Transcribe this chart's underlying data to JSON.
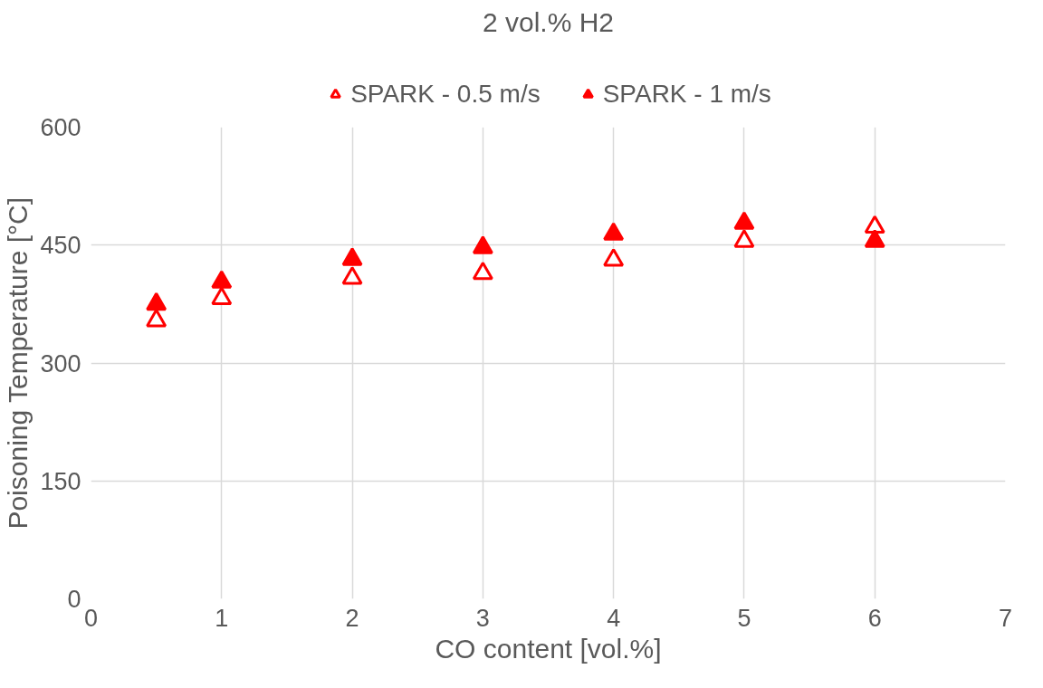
{
  "chart_data": {
    "type": "scatter",
    "title": "2 vol.% H2",
    "xlabel": "CO content [vol.%]",
    "ylabel": "Poisoning Temperature [°C]",
    "x": [
      0.5,
      1,
      2,
      3,
      4,
      5,
      6
    ],
    "series": [
      {
        "name": "SPARK - 0.5 m/s",
        "color": "#ff0000",
        "values": [
          354,
          382,
          408,
          414,
          431,
          455,
          473
        ]
      },
      {
        "name": "SPARK - 1 m/s",
        "color": "#ff0000",
        "values": [
          375,
          403,
          432,
          447,
          464,
          478,
          455
        ]
      }
    ],
    "marker": "triangle",
    "xlim": [
      0,
      7
    ],
    "xticks": [
      0,
      1,
      2,
      3,
      4,
      5,
      6,
      7
    ],
    "ylim": [
      0,
      600
    ],
    "yticks": [
      0,
      150,
      300,
      450,
      600
    ],
    "grid": true,
    "legend": "top"
  }
}
